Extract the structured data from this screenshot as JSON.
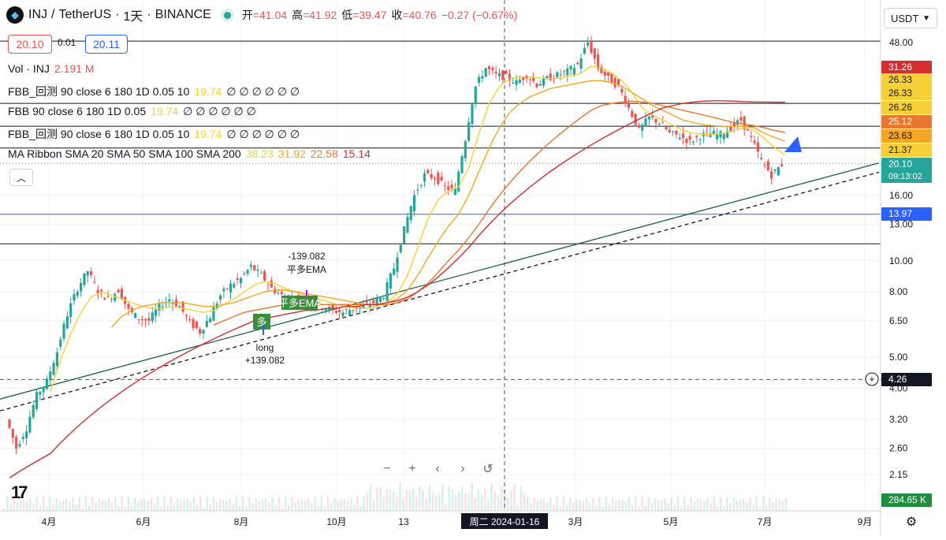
{
  "header": {
    "symbol": "INJ",
    "separator": "/",
    "quote": "TetherUS",
    "interval": "1天",
    "exchange": "BINANCE",
    "open_label": "开",
    "open": "=41.04",
    "high_label": "高",
    "high": "=41.92",
    "low_label": "低",
    "low": "=39.47",
    "close_label": "收",
    "close": "=40.76",
    "change": "−0.27 (−0.67%)"
  },
  "trade": {
    "bid": "20.10",
    "spread": "0.01",
    "ask": "20.11"
  },
  "indicators": {
    "volume": {
      "name": "Vol · INJ",
      "value": "2.191 M"
    },
    "fbb1": {
      "name": "FBB_回测 90 close 6 180 1D 0.05 10",
      "value": "19.74",
      "rest": "∅ ∅ ∅ ∅ ∅ ∅"
    },
    "fbb2": {
      "name": "FBB 90 close 6 180 1D 0.05",
      "value": "19.74",
      "rest": "∅ ∅ ∅ ∅ ∅ ∅"
    },
    "fbb3": {
      "name": "FBB_回测 90 close 6 180 1D 0.05 10",
      "value": "19.74",
      "rest": "∅ ∅ ∅ ∅ ∅ ∅"
    },
    "ma": {
      "name": "MA Ribbon SMA 20 SMA 50 SMA 100 SMA 200",
      "v1": "38.23",
      "v2": "31.92",
      "v3": "22.58",
      "v4": "15.14"
    }
  },
  "currency_button": "USDT",
  "tv_logo": "17",
  "zoom_controls": [
    "−",
    "+",
    "‹",
    "›",
    "↺"
  ],
  "colors": {
    "up": "#26a69a",
    "down": "#ef5350",
    "sma20": "#f7d038",
    "sma50": "#f5a623",
    "sma100": "#e8782f",
    "sma200": "#d32f2f",
    "trend": "#1b5e4a",
    "blue_line": "#2962ff"
  },
  "chart_data": {
    "type": "candlestick",
    "scale": "log",
    "ylim": [
      1.75,
      56
    ],
    "y_ticks": [
      "48.00",
      "16.00",
      "13.00",
      "10.00",
      "8.00",
      "6.50",
      "5.00",
      "4.00",
      "3.20",
      "2.60",
      "2.15"
    ],
    "x_ticks": [
      "4月",
      "6月",
      "8月",
      "10月",
      "13",
      "3月",
      "5月",
      "7月",
      "9月"
    ],
    "crosshair_date": "周二  2024-01-16",
    "price_labels": [
      {
        "text": "31.26",
        "price": 31.26,
        "bg": "#d32f2f",
        "fg": "#ffffff"
      },
      {
        "text": "26.33",
        "price": 26.33,
        "bg": "#f7d038",
        "fg": "#131722"
      },
      {
        "text": "26.33",
        "price": 26.33,
        "bg": "#f7d038",
        "fg": "#131722"
      },
      {
        "text": "26.26",
        "price": 26.26,
        "bg": "#f7d038",
        "fg": "#131722"
      },
      {
        "text": "25.12",
        "price": 25.12,
        "bg": "#e8782f",
        "fg": "#ffffff"
      },
      {
        "text": "23.63",
        "price": 23.63,
        "bg": "#f5a623",
        "fg": "#131722"
      },
      {
        "text": "21.37",
        "price": 21.37,
        "bg": "#f7d038",
        "fg": "#131722"
      },
      {
        "text": "20.10",
        "price": 20.1,
        "bg": "#26a69a",
        "fg": "#ffffff",
        "sub": "09:13:02"
      },
      {
        "text": "13.97",
        "price": 13.97,
        "bg": "#2962ff",
        "fg": "#ffffff"
      },
      {
        "text": "4.26",
        "price": 4.26,
        "bg": "#131722",
        "fg": "#ffffff"
      },
      {
        "text": "284.65 K",
        "price": 1.95,
        "bg": "#1e8e3e",
        "fg": "#ffffff"
      }
    ],
    "horizontal_levels": [
      {
        "price": 48.5,
        "color": "#131722"
      },
      {
        "price": 31.0,
        "color": "#131722"
      },
      {
        "price": 26.3,
        "color": "#131722"
      },
      {
        "price": 22.5,
        "color": "#131722"
      },
      {
        "price": 13.97,
        "color": "#2962ff"
      },
      {
        "price": 11.3,
        "color": "#131722"
      }
    ],
    "dotted_price": 20.1,
    "cursor_price": 4.26,
    "series": [
      {
        "name": "price",
        "values": [
          3.2,
          2.6,
          3.0,
          3.8,
          4.2,
          5.2,
          6.8,
          8.2,
          9.3,
          8.0,
          7.6,
          8.1,
          7.0,
          6.6,
          6.5,
          7.2,
          7.6,
          7.2,
          6.4,
          6.0,
          6.7,
          7.8,
          8.4,
          8.8,
          9.6,
          9.0,
          8.2,
          7.8,
          7.6,
          7.6,
          7.4,
          7.2,
          7.0,
          6.9,
          7.1,
          7.2,
          7.4,
          7.8,
          9.5,
          12.5,
          16.0,
          18.5,
          18.2,
          17.0,
          16.5,
          24.0,
          35.0,
          40.0,
          38.0,
          37.5,
          36.0,
          38.0,
          35.5,
          37.0,
          38.0,
          39.0,
          41.0,
          48.0,
          40.0,
          37.0,
          35.0,
          30.0,
          25.5,
          28.0,
          27.0,
          25.0,
          24.5,
          23.5,
          24.5,
          25.0,
          24.8,
          26.0,
          27.5,
          24.0,
          20.5,
          18.5,
          20.0
        ]
      },
      {
        "name": "SMA 20",
        "values": [
          null,
          null,
          null,
          null,
          3.9,
          4.9,
          5.9,
          6.9,
          7.7,
          8.0,
          7.8,
          7.6,
          7.4,
          7.2,
          7.1,
          7.1,
          7.2,
          7.1,
          7.0,
          6.9,
          7.0,
          7.3,
          7.6,
          8.0,
          8.4,
          8.6,
          8.5,
          8.2,
          8.0,
          7.8,
          7.6,
          7.5,
          7.3,
          7.2,
          7.1,
          7.1,
          7.2,
          7.4,
          7.9,
          9.0,
          11.0,
          13.5,
          15.5,
          16.5,
          17.0,
          19.5,
          25.0,
          31.0,
          35.0,
          37.0,
          37.5,
          37.5,
          37.2,
          37.0,
          37.2,
          37.8,
          38.5,
          40.5,
          40.0,
          38.5,
          36.5,
          33.5,
          30.0,
          28.5,
          27.5,
          26.5,
          25.5,
          25.0,
          24.8,
          24.8,
          25.0,
          25.5,
          26.0,
          25.5,
          24.0,
          22.5,
          21.37
        ]
      },
      {
        "name": "SMA 50",
        "values": [
          null,
          null,
          null,
          null,
          null,
          null,
          null,
          null,
          null,
          null,
          6.2,
          6.7,
          7.0,
          7.2,
          7.3,
          7.4,
          7.4,
          7.4,
          7.3,
          7.2,
          7.2,
          7.3,
          7.4,
          7.6,
          7.8,
          8.0,
          8.1,
          8.1,
          8.0,
          7.9,
          7.8,
          7.7,
          7.6,
          7.5,
          7.4,
          7.3,
          7.3,
          7.4,
          7.6,
          8.1,
          9.0,
          10.2,
          11.5,
          12.8,
          14.0,
          16.0,
          19.0,
          22.5,
          26.0,
          29.0,
          31.0,
          32.5,
          33.5,
          34.5,
          35.0,
          35.5,
          36.0,
          36.5,
          36.5,
          36.0,
          35.0,
          33.5,
          32.0,
          30.5,
          29.5,
          28.5,
          27.5,
          27.0,
          26.6,
          26.4,
          26.3,
          26.3,
          26.3,
          26.0,
          25.0,
          24.2,
          23.63
        ]
      },
      {
        "name": "SMA 100",
        "values": [
          null,
          null,
          null,
          null,
          null,
          null,
          null,
          null,
          null,
          null,
          null,
          null,
          null,
          null,
          null,
          null,
          null,
          null,
          null,
          null,
          6.3,
          6.5,
          6.7,
          6.9,
          7.0,
          7.1,
          7.2,
          7.3,
          7.3,
          7.3,
          7.3,
          7.3,
          7.3,
          7.3,
          7.3,
          7.3,
          7.3,
          7.3,
          7.4,
          7.6,
          8.0,
          8.5,
          9.2,
          10.0,
          10.8,
          11.8,
          13.0,
          14.5,
          16.0,
          17.5,
          19.0,
          20.5,
          22.0,
          23.5,
          25.0,
          26.5,
          28.0,
          29.5,
          30.5,
          31.0,
          31.3,
          31.5,
          31.3,
          31.0,
          30.5,
          30.0,
          29.5,
          29.0,
          28.5,
          28.0,
          27.5,
          27.0,
          26.7,
          26.4,
          26.0,
          25.5,
          25.12
        ]
      },
      {
        "name": "SMA 200",
        "values": [
          2.1,
          2.2,
          2.3,
          2.4,
          2.5,
          2.7,
          2.9,
          3.1,
          3.3,
          3.5,
          3.7,
          3.9,
          4.1,
          4.3,
          4.5,
          4.7,
          4.9,
          5.1,
          5.3,
          5.5,
          5.7,
          5.9,
          6.1,
          6.3,
          6.5,
          6.6,
          6.7,
          6.8,
          6.9,
          7.0,
          7.0,
          7.1,
          7.1,
          7.2,
          7.2,
          7.3,
          7.3,
          7.4,
          7.5,
          7.7,
          8.0,
          8.4,
          8.9,
          9.5,
          10.2,
          11.0,
          12.0,
          13.0,
          14.0,
          15.0,
          16.0,
          17.0,
          18.0,
          19.0,
          20.0,
          21.0,
          22.0,
          23.0,
          24.0,
          25.0,
          26.0,
          27.0,
          28.0,
          29.0,
          30.0,
          30.5,
          31.0,
          31.3,
          31.5,
          31.6,
          31.6,
          31.5,
          31.4,
          31.3,
          31.3,
          31.26,
          31.26
        ]
      }
    ],
    "trendlines": [
      {
        "style": "solid",
        "from": [
          0,
          3.7
        ],
        "to": [
          1115,
          20.2
        ]
      },
      {
        "style": "dashed",
        "from": [
          0,
          3.4
        ],
        "to": [
          1115,
          18.9
        ]
      }
    ],
    "annotations": {
      "top_label_value": "-139.082",
      "top_label_text": "平多EMA",
      "signal_box": "平多EMA",
      "long_box": "多",
      "bottom_label_text": "long",
      "bottom_label_value": "+139.082"
    }
  }
}
